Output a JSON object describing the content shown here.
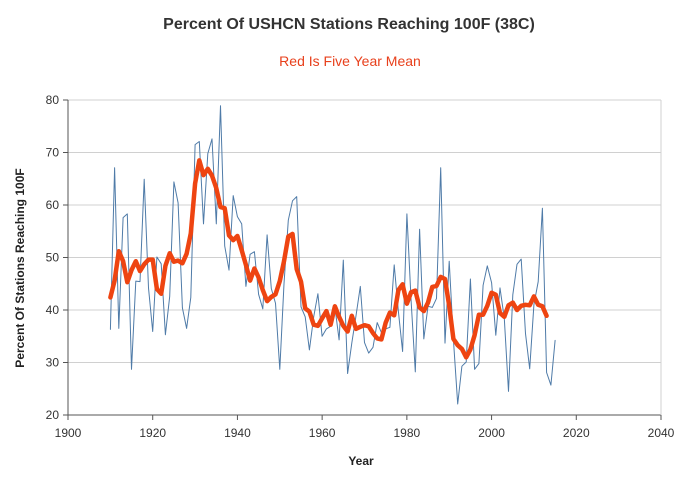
{
  "chart_data": {
    "type": "line",
    "title": "Percent Of USHCN Stations Reaching 100F (38C)",
    "subtitle": "Red Is Five Year Mean",
    "xlabel": "Year",
    "ylabel": "Percent Of Stations Reaching 100F",
    "xlim": [
      1900,
      2040
    ],
    "ylim": [
      20,
      80
    ],
    "xticks": [
      "1900",
      "1920",
      "1940",
      "1960",
      "1980",
      "2000",
      "2020",
      "2040"
    ],
    "yticks": [
      "20",
      "30",
      "40",
      "50",
      "60",
      "70",
      "80"
    ],
    "grid": true,
    "legend": "none",
    "colors": {
      "annual": "#4f7ba8",
      "mean": "#ee4411",
      "grid": "#d0d0d0",
      "axis": "#555555"
    },
    "series": [
      {
        "role": "annual",
        "x": [
          1910,
          1911,
          1912,
          1913,
          1914,
          1915,
          1916,
          1917,
          1918,
          1919,
          1920,
          1921,
          1922,
          1923,
          1924,
          1925,
          1926,
          1927,
          1928,
          1929,
          1930,
          1931,
          1932,
          1933,
          1934,
          1935,
          1936,
          1937,
          1938,
          1939,
          1940,
          1941,
          1942,
          1943,
          1944,
          1945,
          1946,
          1947,
          1948,
          1949,
          1950,
          1951,
          1952,
          1953,
          1954,
          1955,
          1956,
          1957,
          1958,
          1959,
          1960,
          1961,
          1962,
          1963,
          1964,
          1965,
          1966,
          1967,
          1968,
          1969,
          1970,
          1971,
          1972,
          1973,
          1974,
          1975,
          1976,
          1977,
          1978,
          1979,
          1980,
          1981,
          1982,
          1983,
          1984,
          1985,
          1986,
          1987,
          1988,
          1989,
          1990,
          1991,
          1992,
          1993,
          1994,
          1995,
          1996,
          1997,
          1998,
          1999,
          2000,
          2001,
          2002,
          2003,
          2004,
          2005,
          2006,
          2007,
          2008,
          2009,
          2010,
          2011,
          2012,
          2013,
          2014,
          2015
        ],
        "values": [
          36.3,
          67.1,
          36.5,
          57.6,
          58.3,
          28.7,
          45.5,
          45.4,
          64.9,
          44.2,
          35.9,
          50.1,
          48.8,
          35.3,
          42.6,
          64.4,
          60.4,
          40.4,
          36.5,
          42.4,
          71.5,
          72.1,
          56.4,
          69.8,
          72.6,
          56.4,
          78.9,
          52.2,
          47.6,
          61.8,
          57.8,
          56.4,
          44.5,
          50.6,
          51.1,
          43.0,
          40.2,
          54.3,
          44.1,
          41.3,
          28.7,
          45.0,
          57.1,
          60.8,
          61.6,
          40.6,
          38.7,
          32.4,
          38.7,
          43.1,
          35.0,
          36.4,
          36.9,
          40.6,
          34.3,
          49.5,
          27.9,
          33.7,
          38.9,
          44.5,
          33.8,
          31.8,
          32.9,
          37.6,
          35.7,
          36.4,
          36.7,
          48.6,
          39.7,
          32.1,
          58.3,
          41.8,
          28.2,
          55.4,
          34.5,
          40.7,
          40.5,
          42.2,
          67.1,
          33.7,
          49.3,
          34.4,
          22.1,
          29.3,
          30.1,
          45.9,
          28.7,
          29.8,
          44.7,
          48.4,
          45.2,
          35.2,
          44.2,
          38.4,
          24.5,
          42.9,
          48.7,
          49.7,
          35.5,
          28.8,
          41.0,
          45.4,
          59.4,
          28.1,
          25.7,
          34.2
        ]
      },
      {
        "role": "five-year mean",
        "x": [
          1910,
          1911,
          1912,
          1913,
          1914,
          1915,
          1916,
          1917,
          1918,
          1919,
          1920,
          1921,
          1922,
          1923,
          1924,
          1925,
          1926,
          1927,
          1928,
          1929,
          1930,
          1931,
          1932,
          1933,
          1934,
          1935,
          1936,
          1937,
          1938,
          1939,
          1940,
          1941,
          1942,
          1943,
          1944,
          1945,
          1946,
          1947,
          1948,
          1949,
          1950,
          1951,
          1952,
          1953,
          1954,
          1955,
          1956,
          1957,
          1958,
          1959,
          1960,
          1961,
          1962,
          1963,
          1964,
          1965,
          1966,
          1967,
          1968,
          1969,
          1970,
          1971,
          1972,
          1973,
          1974,
          1975,
          1976,
          1977,
          1978,
          1979,
          1980,
          1981,
          1982,
          1983,
          1984,
          1985,
          1986,
          1987,
          1988,
          1989,
          1990,
          1991,
          1992,
          1993,
          1994,
          1995,
          1996,
          1997,
          1998,
          1999,
          2000,
          2001,
          2002,
          2003,
          2004,
          2005,
          2006,
          2007,
          2008,
          2009,
          2010,
          2011,
          2012,
          2013
        ],
        "values": [
          42.4,
          45.6,
          51.2,
          49.3,
          45.3,
          47.6,
          49.3,
          47.4,
          48.7,
          49.6,
          49.6,
          44.0,
          43.1,
          48.4,
          50.8,
          49.2,
          49.4,
          48.9,
          50.7,
          54.6,
          64.1,
          68.5,
          65.7,
          66.9,
          65.6,
          63.2,
          59.6,
          59.4,
          54.2,
          53.3,
          54.1,
          51.4,
          48.6,
          45.6,
          47.9,
          46.2,
          43.8,
          41.7,
          42.5,
          43.0,
          45.5,
          49.3,
          54.0,
          54.5,
          47.8,
          45.4,
          40.3,
          39.7,
          37.2,
          37.0,
          38.4,
          39.8,
          37.2,
          40.7,
          38.7,
          37.0,
          35.9,
          38.9,
          36.4,
          36.8,
          37.1,
          36.9,
          35.6,
          34.6,
          34.4,
          37.6,
          39.5,
          39.0,
          43.8,
          44.9,
          41.2,
          43.4,
          43.7,
          40.5,
          39.8,
          41.4,
          44.4,
          44.6,
          46.3,
          45.9,
          40.8,
          34.5,
          33.3,
          32.6,
          31.0,
          32.5,
          35.2,
          39.1,
          39.1,
          40.8,
          43.3,
          42.9,
          39.4,
          38.7,
          40.9,
          41.4,
          40.0,
          40.8,
          41.0,
          40.9,
          42.6,
          41.0,
          40.7,
          38.9
        ]
      }
    ]
  }
}
